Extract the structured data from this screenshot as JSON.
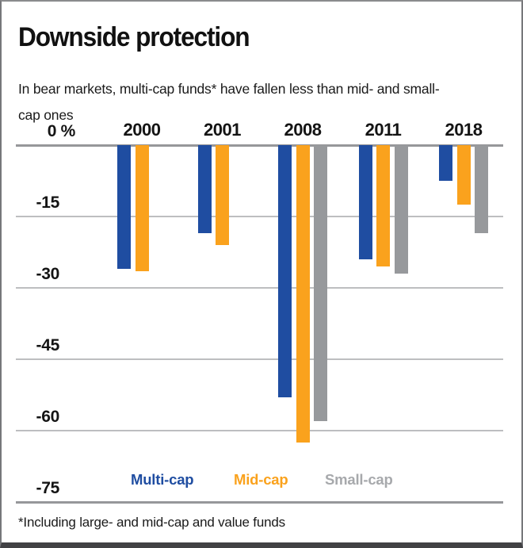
{
  "header": {
    "title": "Downside protection",
    "subtitle": "In bear markets, multi-cap funds* have fallen less than mid- and small-\ncap ones"
  },
  "footnote": "*Including large- and mid-cap and value funds",
  "colors": {
    "multi_cap": "#1F4DA1",
    "mid_cap": "#FAA21D",
    "small_cap": "#97999C",
    "small_cap_legend": "#A7A9AC",
    "gridline": "#bdbec0",
    "axis_line": "#96979a",
    "text": "#141414"
  },
  "chart_data": {
    "type": "bar",
    "title": "Downside protection",
    "categories": [
      "2000",
      "2001",
      "2008",
      "2011",
      "2018"
    ],
    "series": [
      {
        "name": "Multi-cap",
        "color_key": "multi_cap",
        "values": [
          -26,
          -18.5,
          -53,
          -24,
          -7.5
        ]
      },
      {
        "name": "Mid-cap",
        "color_key": "mid_cap",
        "values": [
          -26.5,
          -21,
          -62.5,
          -25.5,
          -12.5
        ]
      },
      {
        "name": "Small-cap",
        "color_key": "small_cap",
        "values": [
          null,
          null,
          -58,
          -27,
          -18.5
        ]
      }
    ],
    "y_axis": {
      "unit": "%",
      "min": -75,
      "max": 0,
      "ticks": [
        {
          "label": "0 %",
          "value": 0
        },
        {
          "label": "-15",
          "value": -15
        },
        {
          "label": "-30",
          "value": -30
        },
        {
          "label": "-45",
          "value": -45
        },
        {
          "label": "-60",
          "value": -60
        },
        {
          "label": "-75",
          "value": -75
        }
      ]
    },
    "legend": [
      "Multi-cap",
      "Mid-cap",
      "Small-cap"
    ],
    "legend_position": "bottom",
    "grid": true
  }
}
